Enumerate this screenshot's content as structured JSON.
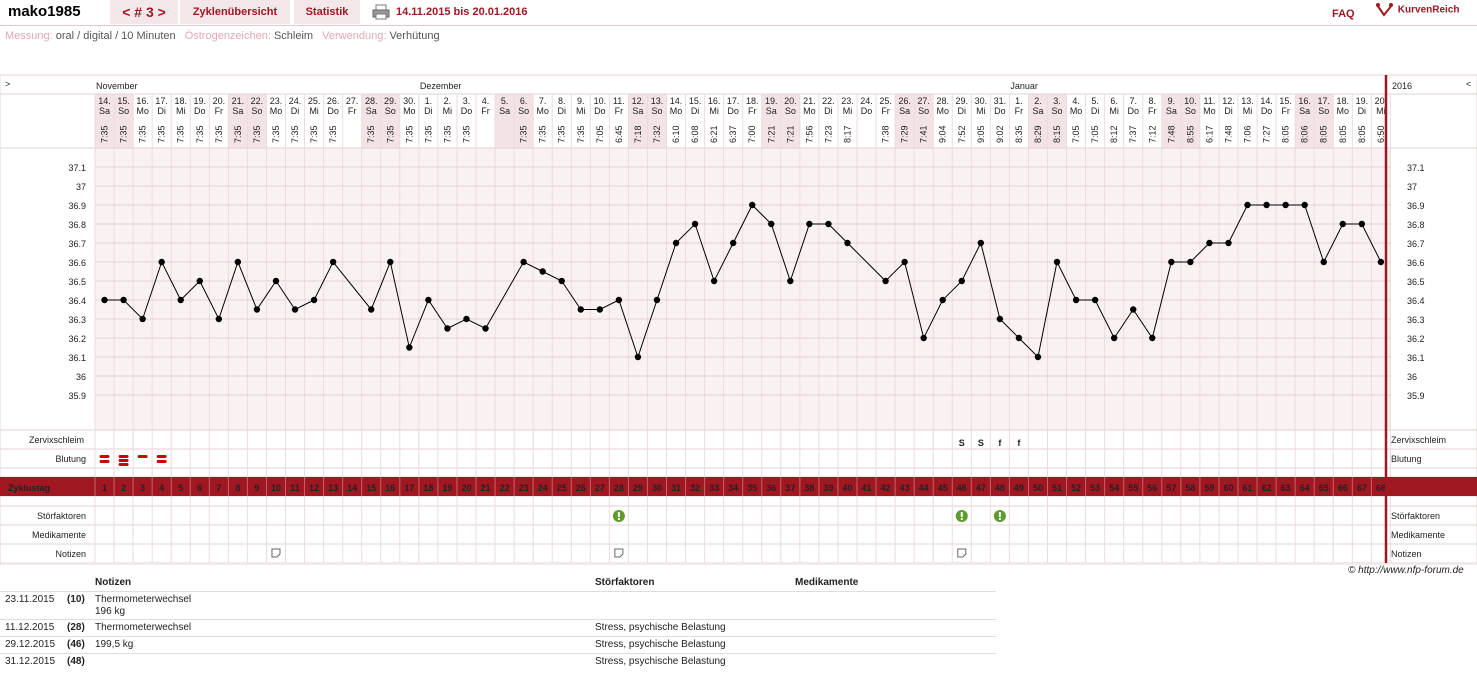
{
  "header": {
    "user": "mako1985",
    "tab_cycle": "< # 3 >",
    "tab_overview": "Zyklenübersicht",
    "tab_stats": "Statistik",
    "daterange": "14.11.2015 bis 20.01.2016",
    "faq": "FAQ",
    "logo": "KurvenReich"
  },
  "meta": {
    "k1": "Messung:",
    "v1": "oral / digital / 10 Minuten",
    "k2": "Östrogenzeichen:",
    "v2": "Schleim",
    "k3": "Verwendung:",
    "v3": "Verhütung"
  },
  "nav": {
    "prev": ">",
    "next": "<",
    "year": "2016"
  },
  "months": [
    {
      "label": "November",
      "day": 1
    },
    {
      "label": "Dezember",
      "day": 18
    },
    {
      "label": "Januar",
      "day": 49
    }
  ],
  "days": [
    {
      "d": "14.",
      "w": "Sa",
      "t": "7:35",
      "we": true
    },
    {
      "d": "15.",
      "w": "So",
      "t": "7:35",
      "we": true
    },
    {
      "d": "16.",
      "w": "Mo",
      "t": "7:35"
    },
    {
      "d": "17.",
      "w": "Di",
      "t": "7:35"
    },
    {
      "d": "18.",
      "w": "Mi",
      "t": "7:35"
    },
    {
      "d": "19.",
      "w": "Do",
      "t": "7:35"
    },
    {
      "d": "20.",
      "w": "Fr",
      "t": "7:35"
    },
    {
      "d": "21.",
      "w": "Sa",
      "t": "7:35",
      "we": true
    },
    {
      "d": "22.",
      "w": "So",
      "t": "7:35",
      "we": true
    },
    {
      "d": "23.",
      "w": "Mo",
      "t": "7:35"
    },
    {
      "d": "24.",
      "w": "Di",
      "t": "7:35"
    },
    {
      "d": "25.",
      "w": "Mi",
      "t": "7:35"
    },
    {
      "d": "26.",
      "w": "Do",
      "t": "7:35"
    },
    {
      "d": "27.",
      "w": "Fr",
      "t": ""
    },
    {
      "d": "28.",
      "w": "Sa",
      "t": "7:35",
      "we": true
    },
    {
      "d": "29.",
      "w": "So",
      "t": "7:35",
      "we": true
    },
    {
      "d": "30.",
      "w": "Mo",
      "t": "7:35"
    },
    {
      "d": "1.",
      "w": "Di",
      "t": "7:35"
    },
    {
      "d": "2.",
      "w": "Mi",
      "t": "7:35"
    },
    {
      "d": "3.",
      "w": "Do",
      "t": "7:35"
    },
    {
      "d": "4.",
      "w": "Fr",
      "t": ""
    },
    {
      "d": "5.",
      "w": "Sa",
      "t": "",
      "we": true
    },
    {
      "d": "6.",
      "w": "So",
      "t": "7:35",
      "we": true
    },
    {
      "d": "7.",
      "w": "Mo",
      "t": "7:35"
    },
    {
      "d": "8.",
      "w": "Di",
      "t": "7:35"
    },
    {
      "d": "9.",
      "w": "Mi",
      "t": "7:35"
    },
    {
      "d": "10.",
      "w": "Do",
      "t": "7:05"
    },
    {
      "d": "11.",
      "w": "Fr",
      "t": "6:45"
    },
    {
      "d": "12.",
      "w": "Sa",
      "t": "7:18",
      "we": true
    },
    {
      "d": "13.",
      "w": "So",
      "t": "7:32",
      "we": true
    },
    {
      "d": "14.",
      "w": "Mo",
      "t": "6:10"
    },
    {
      "d": "15.",
      "w": "Di",
      "t": "6:08"
    },
    {
      "d": "16.",
      "w": "Mi",
      "t": "6:21"
    },
    {
      "d": "17.",
      "w": "Do",
      "t": "6:37"
    },
    {
      "d": "18.",
      "w": "Fr",
      "t": "7:00"
    },
    {
      "d": "19.",
      "w": "Sa",
      "t": "7:21",
      "we": true
    },
    {
      "d": "20.",
      "w": "So",
      "t": "7:21",
      "we": true
    },
    {
      "d": "21.",
      "w": "Mo",
      "t": "7:56"
    },
    {
      "d": "22.",
      "w": "Di",
      "t": "7:23"
    },
    {
      "d": "23.",
      "w": "Mi",
      "t": "8:17"
    },
    {
      "d": "24.",
      "w": "Do",
      "t": ""
    },
    {
      "d": "25.",
      "w": "Fr",
      "t": "7:38"
    },
    {
      "d": "26.",
      "w": "Sa",
      "t": "7:29",
      "we": true
    },
    {
      "d": "27.",
      "w": "So",
      "t": "7:41",
      "we": true
    },
    {
      "d": "28.",
      "w": "Mo",
      "t": "9:04"
    },
    {
      "d": "29.",
      "w": "Di",
      "t": "7:52"
    },
    {
      "d": "30.",
      "w": "Mi",
      "t": "9:05"
    },
    {
      "d": "31.",
      "w": "Do",
      "t": "9:02"
    },
    {
      "d": "1.",
      "w": "Fr",
      "t": "8:35"
    },
    {
      "d": "2.",
      "w": "Sa",
      "t": "8:29",
      "we": true
    },
    {
      "d": "3.",
      "w": "So",
      "t": "8:15",
      "we": true
    },
    {
      "d": "4.",
      "w": "Mo",
      "t": "7:05"
    },
    {
      "d": "5.",
      "w": "Di",
      "t": "7:05"
    },
    {
      "d": "6.",
      "w": "Mi",
      "t": "8:12"
    },
    {
      "d": "7.",
      "w": "Do",
      "t": "7:37"
    },
    {
      "d": "8.",
      "w": "Fr",
      "t": "7:12"
    },
    {
      "d": "9.",
      "w": "Sa",
      "t": "7:48",
      "we": true
    },
    {
      "d": "10.",
      "w": "So",
      "t": "8:55",
      "we": true
    },
    {
      "d": "11.",
      "w": "Mo",
      "t": "6:17"
    },
    {
      "d": "12.",
      "w": "Di",
      "t": "7:48"
    },
    {
      "d": "13.",
      "w": "Mi",
      "t": "7:06"
    },
    {
      "d": "14.",
      "w": "Do",
      "t": "7:27"
    },
    {
      "d": "15.",
      "w": "Fr",
      "t": "8:05"
    },
    {
      "d": "16.",
      "w": "Sa",
      "t": "8:06",
      "we": true
    },
    {
      "d": "17.",
      "w": "So",
      "t": "8:05",
      "we": true
    },
    {
      "d": "18.",
      "w": "Mo",
      "t": "8:05"
    },
    {
      "d": "19.",
      "w": "Di",
      "t": "8:05"
    },
    {
      "d": "20.",
      "w": "Mi",
      "t": "6:50"
    }
  ],
  "rows": {
    "zervix": "Zervixschleim",
    "blutung": "Blutung",
    "zyklustag": "Zyklustag",
    "stoer": "Störfaktoren",
    "medi": "Medikamente",
    "notizen": "Notizen"
  },
  "cervix_marks": [
    {
      "day": 46,
      "v": "S"
    },
    {
      "day": 47,
      "v": "S"
    },
    {
      "day": 48,
      "v": "f"
    },
    {
      "day": 49,
      "v": "f"
    }
  ],
  "bleeding": [
    {
      "day": 1,
      "level": "medium"
    },
    {
      "day": 2,
      "level": "heavy"
    },
    {
      "day": 3,
      "level": "light"
    },
    {
      "day": 4,
      "level": "medium"
    }
  ],
  "disturbance_days": [
    28,
    46,
    48
  ],
  "note_days": [
    10,
    28,
    46
  ],
  "colors": {
    "accent": "#a01722",
    "cervix": "#e07b1a",
    "disturb": "#5e9a2d",
    "weekend": "#f3e3e5",
    "plotbg": "#faf2f2"
  },
  "chart_data": {
    "type": "line",
    "title": "",
    "xlabel": "Zyklustag",
    "ylabel": "",
    "ylim": [
      35.8,
      37.2
    ],
    "yticks": [
      "37.1",
      "37",
      "36.9",
      "36.8",
      "36.7",
      "36.6",
      "36.5",
      "36.4",
      "36.3",
      "36.2",
      "36.1",
      "36",
      "35.9"
    ],
    "x": [
      1,
      2,
      3,
      4,
      5,
      6,
      7,
      8,
      9,
      10,
      11,
      12,
      13,
      15,
      16,
      17,
      18,
      19,
      20,
      21,
      23,
      24,
      25,
      26,
      27,
      28,
      29,
      30,
      31,
      32,
      33,
      34,
      35,
      36,
      37,
      38,
      39,
      40,
      42,
      43,
      44,
      45,
      46,
      47,
      48,
      49,
      50,
      51,
      52,
      53,
      54,
      55,
      56,
      57,
      58,
      59,
      60,
      61,
      62,
      63,
      64,
      65,
      66,
      67,
      68
    ],
    "values": [
      36.4,
      36.4,
      36.3,
      36.6,
      36.4,
      36.5,
      36.3,
      36.6,
      36.35,
      36.5,
      36.35,
      36.4,
      36.6,
      36.35,
      36.6,
      36.15,
      36.4,
      36.25,
      36.3,
      36.25,
      36.6,
      36.55,
      36.5,
      36.35,
      36.35,
      36.4,
      36.1,
      36.4,
      36.7,
      36.8,
      36.5,
      36.7,
      36.9,
      36.8,
      36.5,
      36.8,
      36.8,
      36.7,
      36.5,
      36.6,
      36.2,
      36.4,
      36.5,
      36.7,
      36.3,
      36.2,
      36.1,
      36.6,
      36.4,
      36.4,
      36.2,
      36.35,
      36.2,
      36.6,
      36.6,
      36.7,
      36.7,
      36.9,
      36.9,
      36.9,
      36.9,
      36.6,
      36.8,
      36.8,
      36.6
    ]
  },
  "notes": {
    "col_notes": "Notizen",
    "col_stoer": "Störfaktoren",
    "col_medi": "Medikamente",
    "rows": [
      {
        "date": "23.11.2015",
        "ct": "(10)",
        "note": "Thermometerwechsel",
        "note2": "196 kg",
        "stoer": ""
      },
      {
        "date": "11.12.2015",
        "ct": "(28)",
        "note": "Thermometerwechsel",
        "note2": "",
        "stoer": "Stress, psychische Belastung"
      },
      {
        "date": "29.12.2015",
        "ct": "(46)",
        "note": "199,5 kg",
        "note2": "",
        "stoer": "Stress, psychische Belastung"
      },
      {
        "date": "31.12.2015",
        "ct": "(48)",
        "note": "",
        "note2": "",
        "stoer": "Stress, psychische Belastung"
      }
    ]
  },
  "copyright": "© http://www.nfp-forum.de"
}
